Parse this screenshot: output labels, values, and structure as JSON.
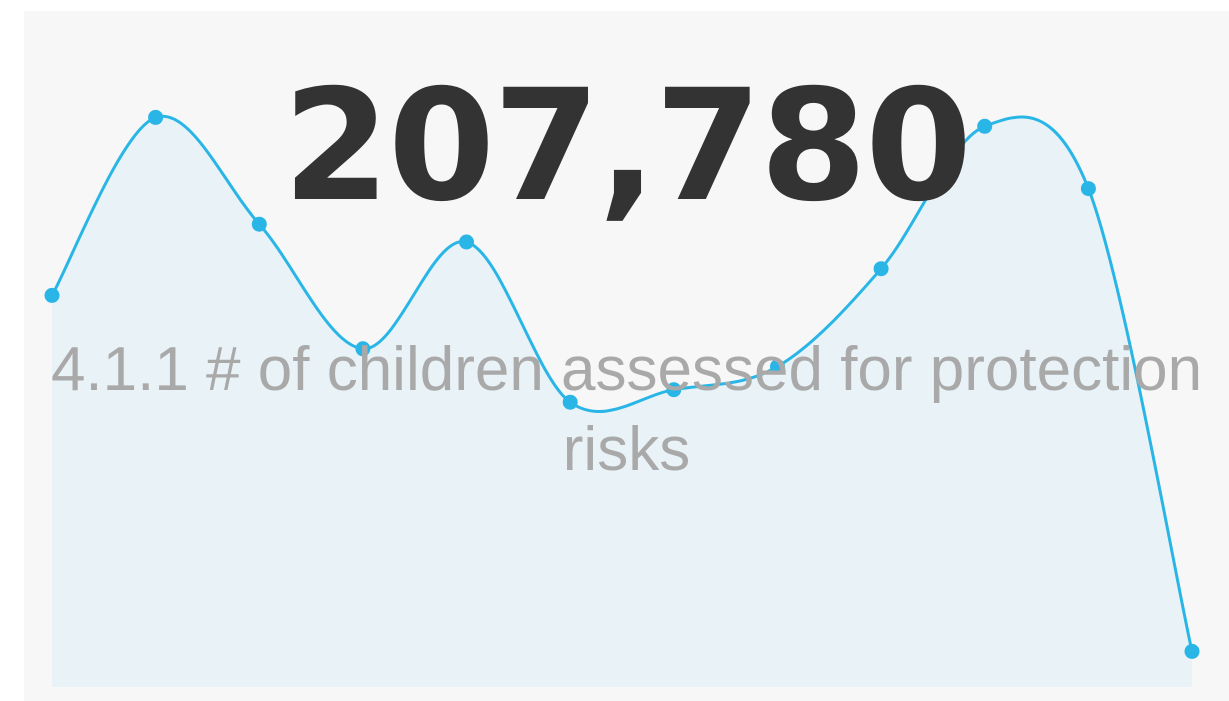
{
  "kpi": {
    "value": "207,780",
    "label": "4.1.1 # of children assessed for protection risks"
  },
  "colors": {
    "line": "#29b6e6",
    "area_fill": "#e9f3f7",
    "card_background": "#f7f7f7",
    "value_text": "#333333",
    "label_text": "#a9a9a9"
  },
  "chart_data": {
    "type": "area",
    "x": [
      1,
      2,
      3,
      4,
      5,
      6,
      7,
      8,
      9,
      10,
      11,
      12
    ],
    "values": [
      22000,
      32000,
      26000,
      19000,
      25000,
      16000,
      16700,
      18000,
      23500,
      31500,
      28000,
      2000
    ],
    "ylim": [
      0,
      35000
    ],
    "grid": false,
    "legend": "none",
    "markers": true,
    "smooth": true
  }
}
